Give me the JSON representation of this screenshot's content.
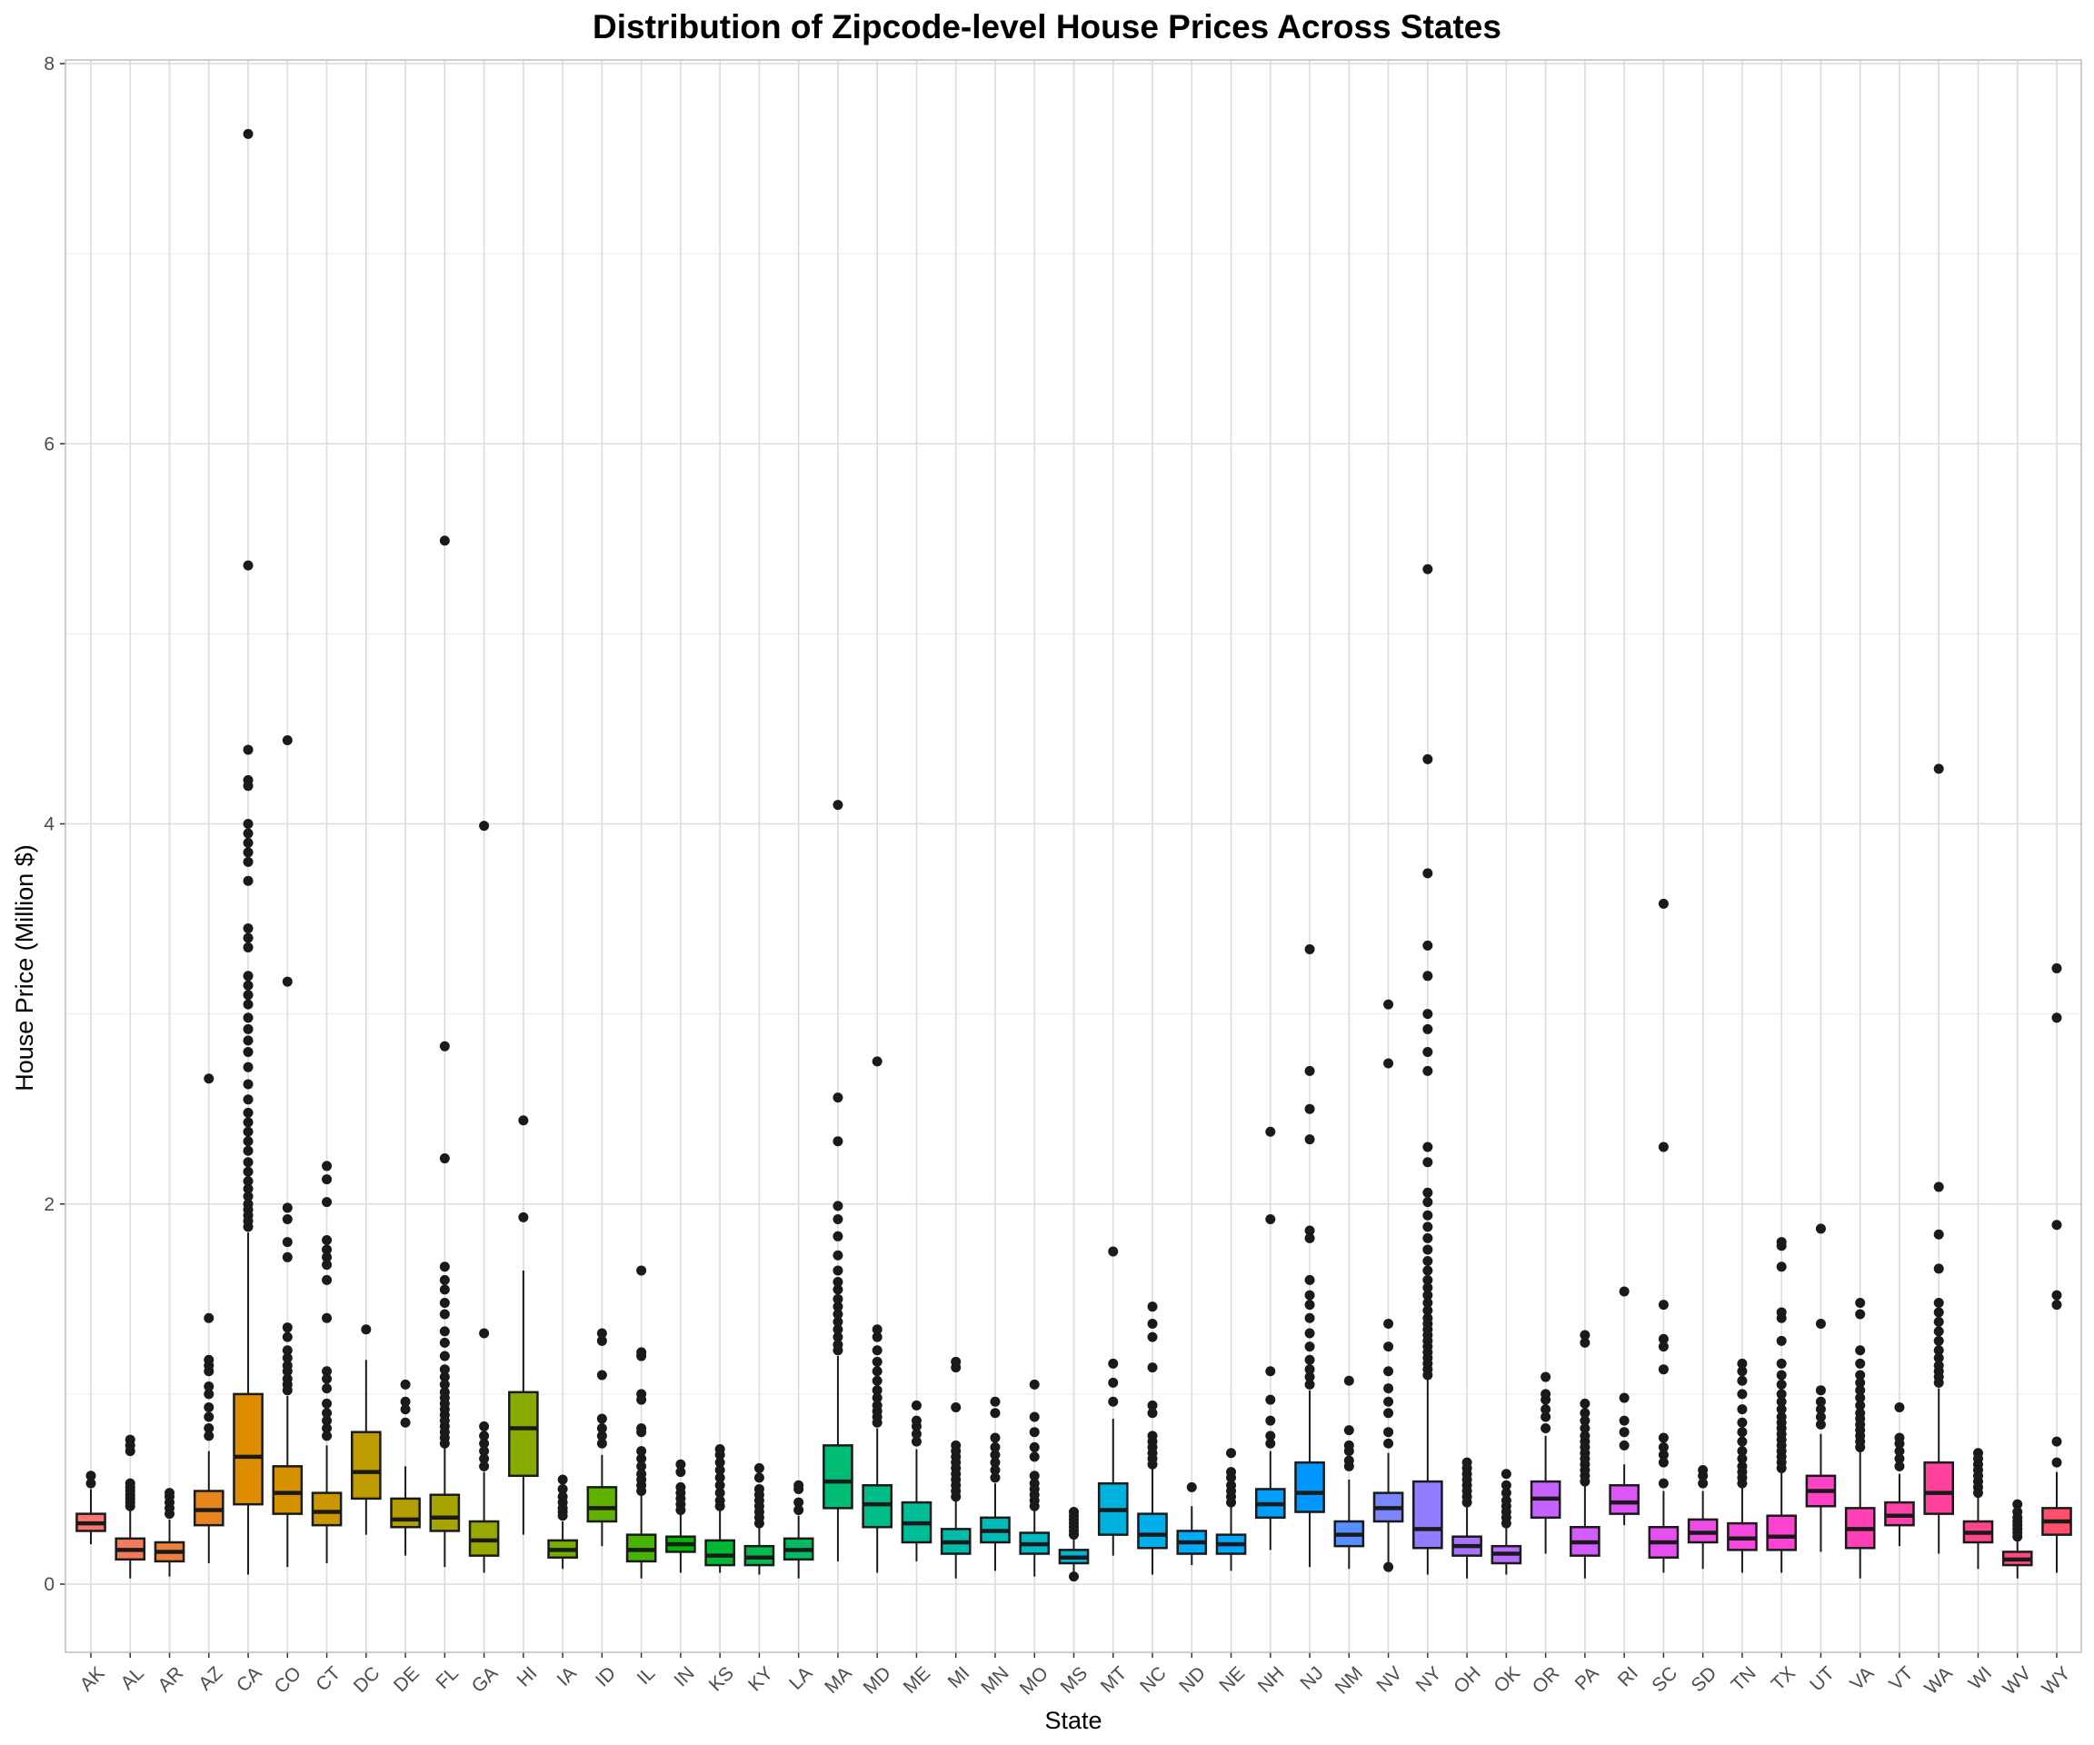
{
  "chart_data": {
    "type": "boxplot",
    "title": "Distribution of Zipcode-level House Prices Across States",
    "xlabel": "State",
    "ylabel": "House Price (Million $)",
    "ylim": [
      -0.35,
      8.0
    ],
    "yticks": [
      0,
      2,
      4,
      6,
      8
    ],
    "grid": true,
    "legend": "none",
    "series": [
      {
        "state": "AK",
        "color": "#F8766D",
        "min": 0.21,
        "q1": 0.28,
        "median": 0.32,
        "q3": 0.37,
        "max": 0.5,
        "outliers": [
          0.53,
          0.57
        ]
      },
      {
        "state": "AL",
        "color": "#F37B59",
        "min": 0.03,
        "q1": 0.13,
        "median": 0.18,
        "q3": 0.24,
        "max": 0.39,
        "outliers": [
          0.41,
          0.43,
          0.45,
          0.47,
          0.49,
          0.51,
          0.53,
          0.7,
          0.73,
          0.76
        ]
      },
      {
        "state": "AR",
        "color": "#ED813E",
        "min": 0.04,
        "q1": 0.12,
        "median": 0.17,
        "q3": 0.22,
        "max": 0.34,
        "outliers": [
          0.37,
          0.4,
          0.43,
          0.46,
          0.48
        ]
      },
      {
        "state": "AZ",
        "color": "#E7851E",
        "min": 0.11,
        "q1": 0.31,
        "median": 0.39,
        "q3": 0.49,
        "max": 0.7,
        "outliers": [
          0.78,
          0.82,
          0.88,
          0.93,
          1.0,
          1.04,
          1.12,
          1.15,
          1.18,
          1.4,
          2.66
        ]
      },
      {
        "state": "CA",
        "color": "#DE8C00",
        "min": 0.05,
        "q1": 0.42,
        "median": 0.67,
        "q3": 1.0,
        "max": 1.85,
        "outliers": [
          1.88,
          1.91,
          1.94,
          1.97,
          2.0,
          2.04,
          2.08,
          2.12,
          2.17,
          2.22,
          2.28,
          2.33,
          2.38,
          2.43,
          2.48,
          2.55,
          2.63,
          2.72,
          2.8,
          2.86,
          2.92,
          2.98,
          3.05,
          3.1,
          3.15,
          3.2,
          3.35,
          3.4,
          3.45,
          3.7,
          3.8,
          3.85,
          3.9,
          3.95,
          4.0,
          4.2,
          4.23,
          4.39,
          5.36,
          7.63
        ]
      },
      {
        "state": "CO",
        "color": "#D59100",
        "min": 0.09,
        "q1": 0.37,
        "median": 0.48,
        "q3": 0.62,
        "max": 0.99,
        "outliers": [
          1.02,
          1.05,
          1.08,
          1.12,
          1.15,
          1.19,
          1.23,
          1.3,
          1.35,
          1.72,
          1.8,
          1.92,
          1.98,
          3.17,
          4.44
        ]
      },
      {
        "state": "CT",
        "color": "#CA9700",
        "min": 0.11,
        "q1": 0.31,
        "median": 0.38,
        "q3": 0.48,
        "max": 0.73,
        "outliers": [
          0.78,
          0.82,
          0.86,
          0.9,
          0.95,
          1.03,
          1.08,
          1.12,
          1.4,
          1.6,
          1.68,
          1.72,
          1.76,
          1.81,
          2.01,
          2.13,
          2.2
        ]
      },
      {
        "state": "DC",
        "color": "#BF9C00",
        "min": 0.26,
        "q1": 0.45,
        "median": 0.59,
        "q3": 0.8,
        "max": 1.18,
        "outliers": [
          1.34
        ]
      },
      {
        "state": "DE",
        "color": "#B3A000",
        "min": 0.15,
        "q1": 0.3,
        "median": 0.34,
        "q3": 0.45,
        "max": 0.62,
        "outliers": [
          0.85,
          0.92,
          0.96,
          1.05
        ]
      },
      {
        "state": "FL",
        "color": "#A6A400",
        "min": 0.09,
        "q1": 0.28,
        "median": 0.35,
        "q3": 0.47,
        "max": 0.72,
        "outliers": [
          0.74,
          0.77,
          0.8,
          0.83,
          0.86,
          0.89,
          0.92,
          0.95,
          0.98,
          1.01,
          1.05,
          1.09,
          1.13,
          1.2,
          1.27,
          1.33,
          1.42,
          1.48,
          1.55,
          1.6,
          1.67,
          2.24,
          2.83,
          5.49
        ]
      },
      {
        "state": "GA",
        "color": "#98A800",
        "min": 0.06,
        "q1": 0.15,
        "median": 0.23,
        "q3": 0.33,
        "max": 0.59,
        "outliers": [
          0.62,
          0.66,
          0.7,
          0.74,
          0.78,
          0.83,
          1.32,
          3.99
        ]
      },
      {
        "state": "HI",
        "color": "#88AB00",
        "min": 0.26,
        "q1": 0.57,
        "median": 0.82,
        "q3": 1.01,
        "max": 1.65,
        "outliers": [
          1.93,
          2.44
        ]
      },
      {
        "state": "IA",
        "color": "#76AF00",
        "min": 0.08,
        "q1": 0.14,
        "median": 0.18,
        "q3": 0.23,
        "max": 0.33,
        "outliers": [
          0.36,
          0.38,
          0.4,
          0.43,
          0.46,
          0.5,
          0.55
        ]
      },
      {
        "state": "ID",
        "color": "#61B200",
        "min": 0.2,
        "q1": 0.33,
        "median": 0.4,
        "q3": 0.51,
        "max": 0.68,
        "outliers": [
          0.74,
          0.78,
          0.82,
          0.87,
          1.1,
          1.28,
          1.32
        ]
      },
      {
        "state": "IL",
        "color": "#46B400",
        "min": 0.03,
        "q1": 0.12,
        "median": 0.18,
        "q3": 0.26,
        "max": 0.47,
        "outliers": [
          0.49,
          0.52,
          0.55,
          0.58,
          0.62,
          0.66,
          0.7,
          0.8,
          0.82,
          0.97,
          1.0,
          1.2,
          1.22,
          1.65
        ]
      },
      {
        "state": "IN",
        "color": "#00B702",
        "min": 0.06,
        "q1": 0.17,
        "median": 0.21,
        "q3": 0.25,
        "max": 0.37,
        "outliers": [
          0.39,
          0.42,
          0.45,
          0.48,
          0.51,
          0.59,
          0.63
        ]
      },
      {
        "state": "KS",
        "color": "#00B835",
        "min": 0.06,
        "q1": 0.1,
        "median": 0.15,
        "q3": 0.23,
        "max": 0.39,
        "outliers": [
          0.41,
          0.44,
          0.48,
          0.52,
          0.56,
          0.6,
          0.64,
          0.68,
          0.71
        ]
      },
      {
        "state": "KY",
        "color": "#00BA4D",
        "min": 0.05,
        "q1": 0.1,
        "median": 0.14,
        "q3": 0.2,
        "max": 0.3,
        "outliers": [
          0.32,
          0.35,
          0.38,
          0.41,
          0.44,
          0.47,
          0.5,
          0.56,
          0.61
        ]
      },
      {
        "state": "LA",
        "color": "#00BB62",
        "min": 0.03,
        "q1": 0.13,
        "median": 0.18,
        "q3": 0.24,
        "max": 0.36,
        "outliers": [
          0.39,
          0.43,
          0.5,
          0.52
        ]
      },
      {
        "state": "MA",
        "color": "#00BC75",
        "min": 0.12,
        "q1": 0.4,
        "median": 0.54,
        "q3": 0.73,
        "max": 1.2,
        "outliers": [
          1.23,
          1.26,
          1.3,
          1.34,
          1.38,
          1.42,
          1.46,
          1.5,
          1.55,
          1.59,
          1.65,
          1.73,
          1.83,
          1.92,
          1.99,
          2.33,
          2.56,
          4.1
        ]
      },
      {
        "state": "MD",
        "color": "#00BD87",
        "min": 0.06,
        "q1": 0.3,
        "median": 0.42,
        "q3": 0.52,
        "max": 0.82,
        "outliers": [
          0.85,
          0.88,
          0.91,
          0.94,
          0.98,
          1.02,
          1.07,
          1.12,
          1.17,
          1.23,
          1.3,
          1.34,
          2.75
        ]
      },
      {
        "state": "ME",
        "color": "#00BD98",
        "min": 0.12,
        "q1": 0.22,
        "median": 0.32,
        "q3": 0.43,
        "max": 0.71,
        "outliers": [
          0.75,
          0.79,
          0.83,
          0.86,
          0.94
        ]
      },
      {
        "state": "MI",
        "color": "#00BCA8",
        "min": 0.03,
        "q1": 0.16,
        "median": 0.22,
        "q3": 0.29,
        "max": 0.44,
        "outliers": [
          0.46,
          0.49,
          0.52,
          0.55,
          0.58,
          0.61,
          0.64,
          0.67,
          0.7,
          0.73,
          0.93,
          1.14,
          1.17
        ]
      },
      {
        "state": "MN",
        "color": "#00BBB7",
        "min": 0.07,
        "q1": 0.22,
        "median": 0.28,
        "q3": 0.35,
        "max": 0.53,
        "outliers": [
          0.56,
          0.6,
          0.64,
          0.68,
          0.72,
          0.77,
          0.9,
          0.96
        ]
      },
      {
        "state": "MO",
        "color": "#00B9C5",
        "min": 0.04,
        "q1": 0.16,
        "median": 0.21,
        "q3": 0.27,
        "max": 0.39,
        "outliers": [
          0.41,
          0.44,
          0.47,
          0.5,
          0.53,
          0.57,
          0.67,
          0.72,
          0.8,
          0.88,
          1.05
        ]
      },
      {
        "state": "MS",
        "color": "#00B6D2",
        "min": 0.03,
        "q1": 0.11,
        "median": 0.14,
        "q3": 0.18,
        "max": 0.25,
        "outliers": [
          0.26,
          0.28,
          0.3,
          0.32,
          0.34,
          0.36,
          0.38,
          0.04
        ]
      },
      {
        "state": "MT",
        "color": "#00B3DF",
        "min": 0.15,
        "q1": 0.26,
        "median": 0.39,
        "q3": 0.53,
        "max": 0.87,
        "outliers": [
          0.96,
          1.06,
          1.16,
          1.75
        ]
      },
      {
        "state": "NC",
        "color": "#00AFEA",
        "min": 0.05,
        "q1": 0.19,
        "median": 0.26,
        "q3": 0.37,
        "max": 0.61,
        "outliers": [
          0.63,
          0.66,
          0.69,
          0.72,
          0.75,
          0.78,
          0.9,
          0.94,
          1.14,
          1.3,
          1.37,
          1.46
        ]
      },
      {
        "state": "ND",
        "color": "#00AAF4",
        "min": 0.1,
        "q1": 0.16,
        "median": 0.22,
        "q3": 0.28,
        "max": 0.41,
        "outliers": [
          0.51
        ]
      },
      {
        "state": "NE",
        "color": "#00A5FE",
        "min": 0.07,
        "q1": 0.16,
        "median": 0.21,
        "q3": 0.26,
        "max": 0.41,
        "outliers": [
          0.43,
          0.46,
          0.49,
          0.52,
          0.56,
          0.59,
          0.69
        ]
      },
      {
        "state": "NH",
        "color": "#009EFF",
        "min": 0.18,
        "q1": 0.35,
        "median": 0.42,
        "q3": 0.5,
        "max": 0.7,
        "outliers": [
          0.74,
          0.78,
          0.86,
          0.97,
          1.12,
          1.92,
          2.38
        ]
      },
      {
        "state": "NJ",
        "color": "#0096FF",
        "min": 0.09,
        "q1": 0.38,
        "median": 0.48,
        "q3": 0.64,
        "max": 1.02,
        "outliers": [
          1.05,
          1.09,
          1.13,
          1.18,
          1.25,
          1.32,
          1.4,
          1.47,
          1.52,
          1.6,
          1.82,
          1.86,
          2.34,
          2.5,
          2.7,
          3.34
        ]
      },
      {
        "state": "NM",
        "color": "#588EFF",
        "min": 0.08,
        "q1": 0.2,
        "median": 0.26,
        "q3": 0.33,
        "max": 0.55,
        "outliers": [
          0.62,
          0.65,
          0.7,
          0.73,
          0.81,
          1.07
        ]
      },
      {
        "state": "NV",
        "color": "#7A85FF",
        "min": 0.08,
        "q1": 0.33,
        "median": 0.4,
        "q3": 0.48,
        "max": 0.69,
        "outliers": [
          0.09,
          0.74,
          0.8,
          0.9,
          0.96,
          1.03,
          1.12,
          1.25,
          1.37,
          2.74,
          3.05
        ]
      },
      {
        "state": "NY",
        "color": "#937CFF",
        "min": 0.05,
        "q1": 0.19,
        "median": 0.29,
        "q3": 0.54,
        "max": 1.08,
        "outliers": [
          1.1,
          1.13,
          1.16,
          1.19,
          1.22,
          1.25,
          1.28,
          1.31,
          1.34,
          1.37,
          1.4,
          1.44,
          1.48,
          1.52,
          1.56,
          1.6,
          1.65,
          1.7,
          1.76,
          1.82,
          1.88,
          1.94,
          2.01,
          2.06,
          2.22,
          2.3,
          2.7,
          2.8,
          2.92,
          3.0,
          3.2,
          3.36,
          3.74,
          4.34,
          5.34
        ]
      },
      {
        "state": "OH",
        "color": "#A774FF",
        "min": 0.03,
        "q1": 0.15,
        "median": 0.2,
        "q3": 0.25,
        "max": 0.41,
        "outliers": [
          0.43,
          0.46,
          0.49,
          0.52,
          0.55,
          0.58,
          0.61,
          0.64
        ]
      },
      {
        "state": "OK",
        "color": "#B86BFF",
        "min": 0.05,
        "q1": 0.11,
        "median": 0.16,
        "q3": 0.2,
        "max": 0.3,
        "outliers": [
          0.32,
          0.35,
          0.38,
          0.41,
          0.44,
          0.48,
          0.52,
          0.58
        ]
      },
      {
        "state": "OR",
        "color": "#C663FF",
        "min": 0.16,
        "q1": 0.35,
        "median": 0.45,
        "q3": 0.54,
        "max": 0.78,
        "outliers": [
          0.82,
          0.88,
          0.92,
          0.97,
          1.0,
          1.09
        ]
      },
      {
        "state": "PA",
        "color": "#D25CFC",
        "min": 0.03,
        "q1": 0.15,
        "median": 0.22,
        "q3": 0.3,
        "max": 0.52,
        "outliers": [
          0.54,
          0.57,
          0.6,
          0.63,
          0.66,
          0.69,
          0.72,
          0.75,
          0.78,
          0.82,
          0.86,
          0.9,
          0.95,
          1.27,
          1.31
        ]
      },
      {
        "state": "RI",
        "color": "#DD55F7",
        "min": 0.31,
        "q1": 0.37,
        "median": 0.43,
        "q3": 0.52,
        "max": 0.63,
        "outliers": [
          0.73,
          0.8,
          0.86,
          0.98,
          1.54
        ]
      },
      {
        "state": "SC",
        "color": "#E650F0",
        "min": 0.06,
        "q1": 0.14,
        "median": 0.22,
        "q3": 0.3,
        "max": 0.49,
        "outliers": [
          0.53,
          0.64,
          0.68,
          0.72,
          0.77,
          1.13,
          1.25,
          1.29,
          1.47,
          2.3,
          3.58
        ]
      },
      {
        "state": "SD",
        "color": "#EE4BE7",
        "min": 0.08,
        "q1": 0.22,
        "median": 0.27,
        "q3": 0.34,
        "max": 0.49,
        "outliers": [
          0.53,
          0.57,
          0.6
        ]
      },
      {
        "state": "TN",
        "color": "#F547DD",
        "min": 0.06,
        "q1": 0.18,
        "median": 0.24,
        "q3": 0.32,
        "max": 0.51,
        "outliers": [
          0.53,
          0.56,
          0.59,
          0.62,
          0.66,
          0.7,
          0.75,
          0.8,
          0.85,
          0.92,
          1.0,
          1.07,
          1.12,
          1.16
        ]
      },
      {
        "state": "TX",
        "color": "#FA44D1",
        "min": 0.06,
        "q1": 0.18,
        "median": 0.25,
        "q3": 0.36,
        "max": 0.59,
        "outliers": [
          0.61,
          0.64,
          0.67,
          0.7,
          0.73,
          0.76,
          0.79,
          0.82,
          0.85,
          0.88,
          0.92,
          0.96,
          1.0,
          1.05,
          1.1,
          1.16,
          1.28,
          1.4,
          1.43,
          1.67,
          1.78,
          1.8
        ]
      },
      {
        "state": "UT",
        "color": "#FE42C5",
        "min": 0.17,
        "q1": 0.41,
        "median": 0.49,
        "q3": 0.57,
        "max": 0.79,
        "outliers": [
          0.84,
          0.88,
          0.92,
          0.96,
          1.02,
          1.37,
          1.87
        ]
      },
      {
        "state": "VA",
        "color": "#FF41B8",
        "min": 0.03,
        "q1": 0.19,
        "median": 0.29,
        "q3": 0.4,
        "max": 0.7,
        "outliers": [
          0.72,
          0.75,
          0.78,
          0.81,
          0.84,
          0.87,
          0.9,
          0.94,
          0.98,
          1.02,
          1.06,
          1.1,
          1.16,
          1.23,
          1.42,
          1.48
        ]
      },
      {
        "state": "VT",
        "color": "#FF41AA",
        "min": 0.2,
        "q1": 0.31,
        "median": 0.36,
        "q3": 0.43,
        "max": 0.58,
        "outliers": [
          0.62,
          0.66,
          0.7,
          0.74,
          0.77,
          0.93
        ]
      },
      {
        "state": "WA",
        "color": "#FF439C",
        "min": 0.16,
        "q1": 0.37,
        "median": 0.48,
        "q3": 0.64,
        "max": 1.03,
        "outliers": [
          1.06,
          1.09,
          1.12,
          1.15,
          1.19,
          1.23,
          1.28,
          1.33,
          1.38,
          1.43,
          1.48,
          1.66,
          1.84,
          2.09,
          4.29
        ]
      },
      {
        "state": "WI",
        "color": "#FF468D",
        "min": 0.08,
        "q1": 0.22,
        "median": 0.27,
        "q3": 0.33,
        "max": 0.46,
        "outliers": [
          0.48,
          0.51,
          0.54,
          0.57,
          0.6,
          0.63,
          0.66,
          0.69
        ]
      },
      {
        "state": "WV",
        "color": "#FF4A7E",
        "min": 0.03,
        "q1": 0.1,
        "median": 0.13,
        "q3": 0.17,
        "max": 0.23,
        "outliers": [
          0.25,
          0.27,
          0.29,
          0.31,
          0.33,
          0.35,
          0.38,
          0.42
        ]
      },
      {
        "state": "WY",
        "color": "#FF4F6E",
        "min": 0.06,
        "q1": 0.26,
        "median": 0.33,
        "q3": 0.4,
        "max": 0.59,
        "outliers": [
          0.64,
          0.75,
          1.47,
          1.52,
          1.89,
          2.98,
          3.24
        ]
      }
    ]
  }
}
